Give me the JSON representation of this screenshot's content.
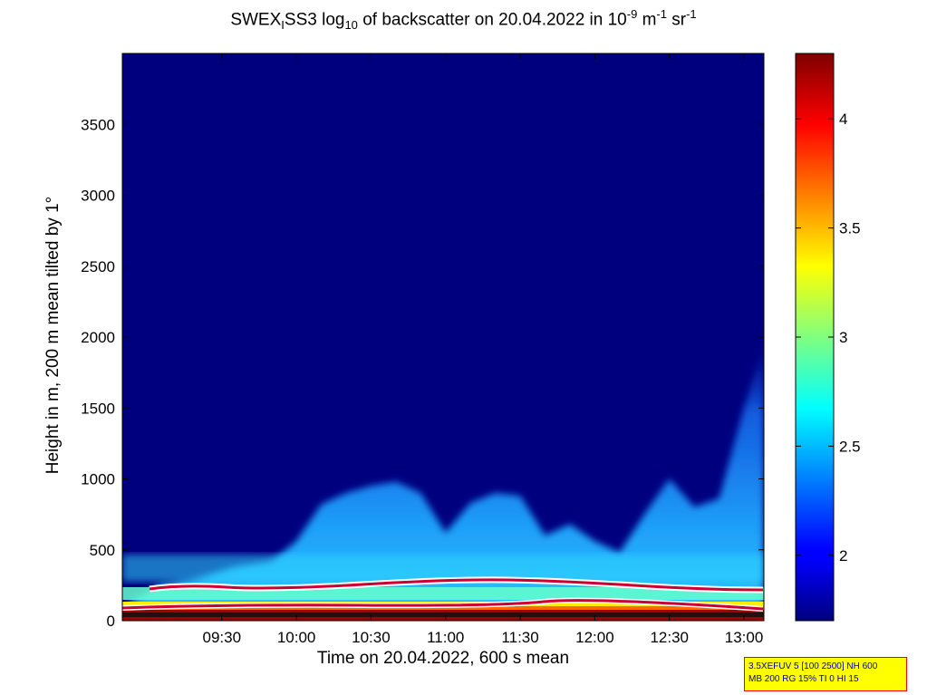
{
  "chart_data": {
    "type": "heatmap",
    "title_parts": {
      "t1": "SWEX",
      "t2": "I",
      "t3": "SS3 log",
      "t4": "10",
      "t5": " of backscatter on 20.04.2022 in 10",
      "t6": "-9",
      "t7": " m",
      "t8": "-1",
      "t9": " sr",
      "t10": "-1"
    },
    "xlabel": "Time on 20.04.2022, 600 s mean",
    "ylabel": "Height in m, 200 m mean tilted by 1°",
    "x_ticks": [
      "09:30",
      "10:00",
      "10:30",
      "11:00",
      "11:30",
      "12:00",
      "12:30",
      "13:00"
    ],
    "x_tick_minutes": [
      570,
      600,
      630,
      660,
      690,
      720,
      750,
      780
    ],
    "xlim_minutes": [
      530,
      788
    ],
    "y_ticks": [
      0,
      500,
      1000,
      1500,
      2000,
      2500,
      3000,
      3500
    ],
    "ylim": [
      0,
      4000
    ],
    "colorbar": {
      "ticks": [
        2,
        2.5,
        3,
        3.5,
        4
      ],
      "tick_labels": [
        "2",
        "2.5",
        "3",
        "3.5",
        "4"
      ],
      "range": [
        1.7,
        4.3
      ],
      "colormap": "jet"
    },
    "aerosol_layer_top_m": [
      [
        532,
        120
      ],
      [
        545,
        250
      ],
      [
        560,
        300
      ],
      [
        575,
        380
      ],
      [
        590,
        420
      ],
      [
        600,
        560
      ],
      [
        610,
        820
      ],
      [
        620,
        900
      ],
      [
        630,
        950
      ],
      [
        640,
        980
      ],
      [
        650,
        900
      ],
      [
        660,
        620
      ],
      [
        670,
        830
      ],
      [
        680,
        900
      ],
      [
        690,
        880
      ],
      [
        700,
        600
      ],
      [
        710,
        680
      ],
      [
        720,
        560
      ],
      [
        730,
        480
      ],
      [
        740,
        750
      ],
      [
        750,
        1000
      ],
      [
        760,
        800
      ],
      [
        770,
        860
      ],
      [
        780,
        1500
      ],
      [
        788,
        1950
      ]
    ],
    "background_value": 1.75,
    "layer_value": 2.5
  },
  "annotation": {
    "line1": "3.5XEFUV 5 [100 2500] NH 600",
    "line2": "MB 200 RG 15% TI 0 HI 15"
  },
  "colors": {
    "background_field": "#00007f",
    "note_border": "#ff0000",
    "note_fill": "#ffff00",
    "note_text": "#0000aa"
  }
}
